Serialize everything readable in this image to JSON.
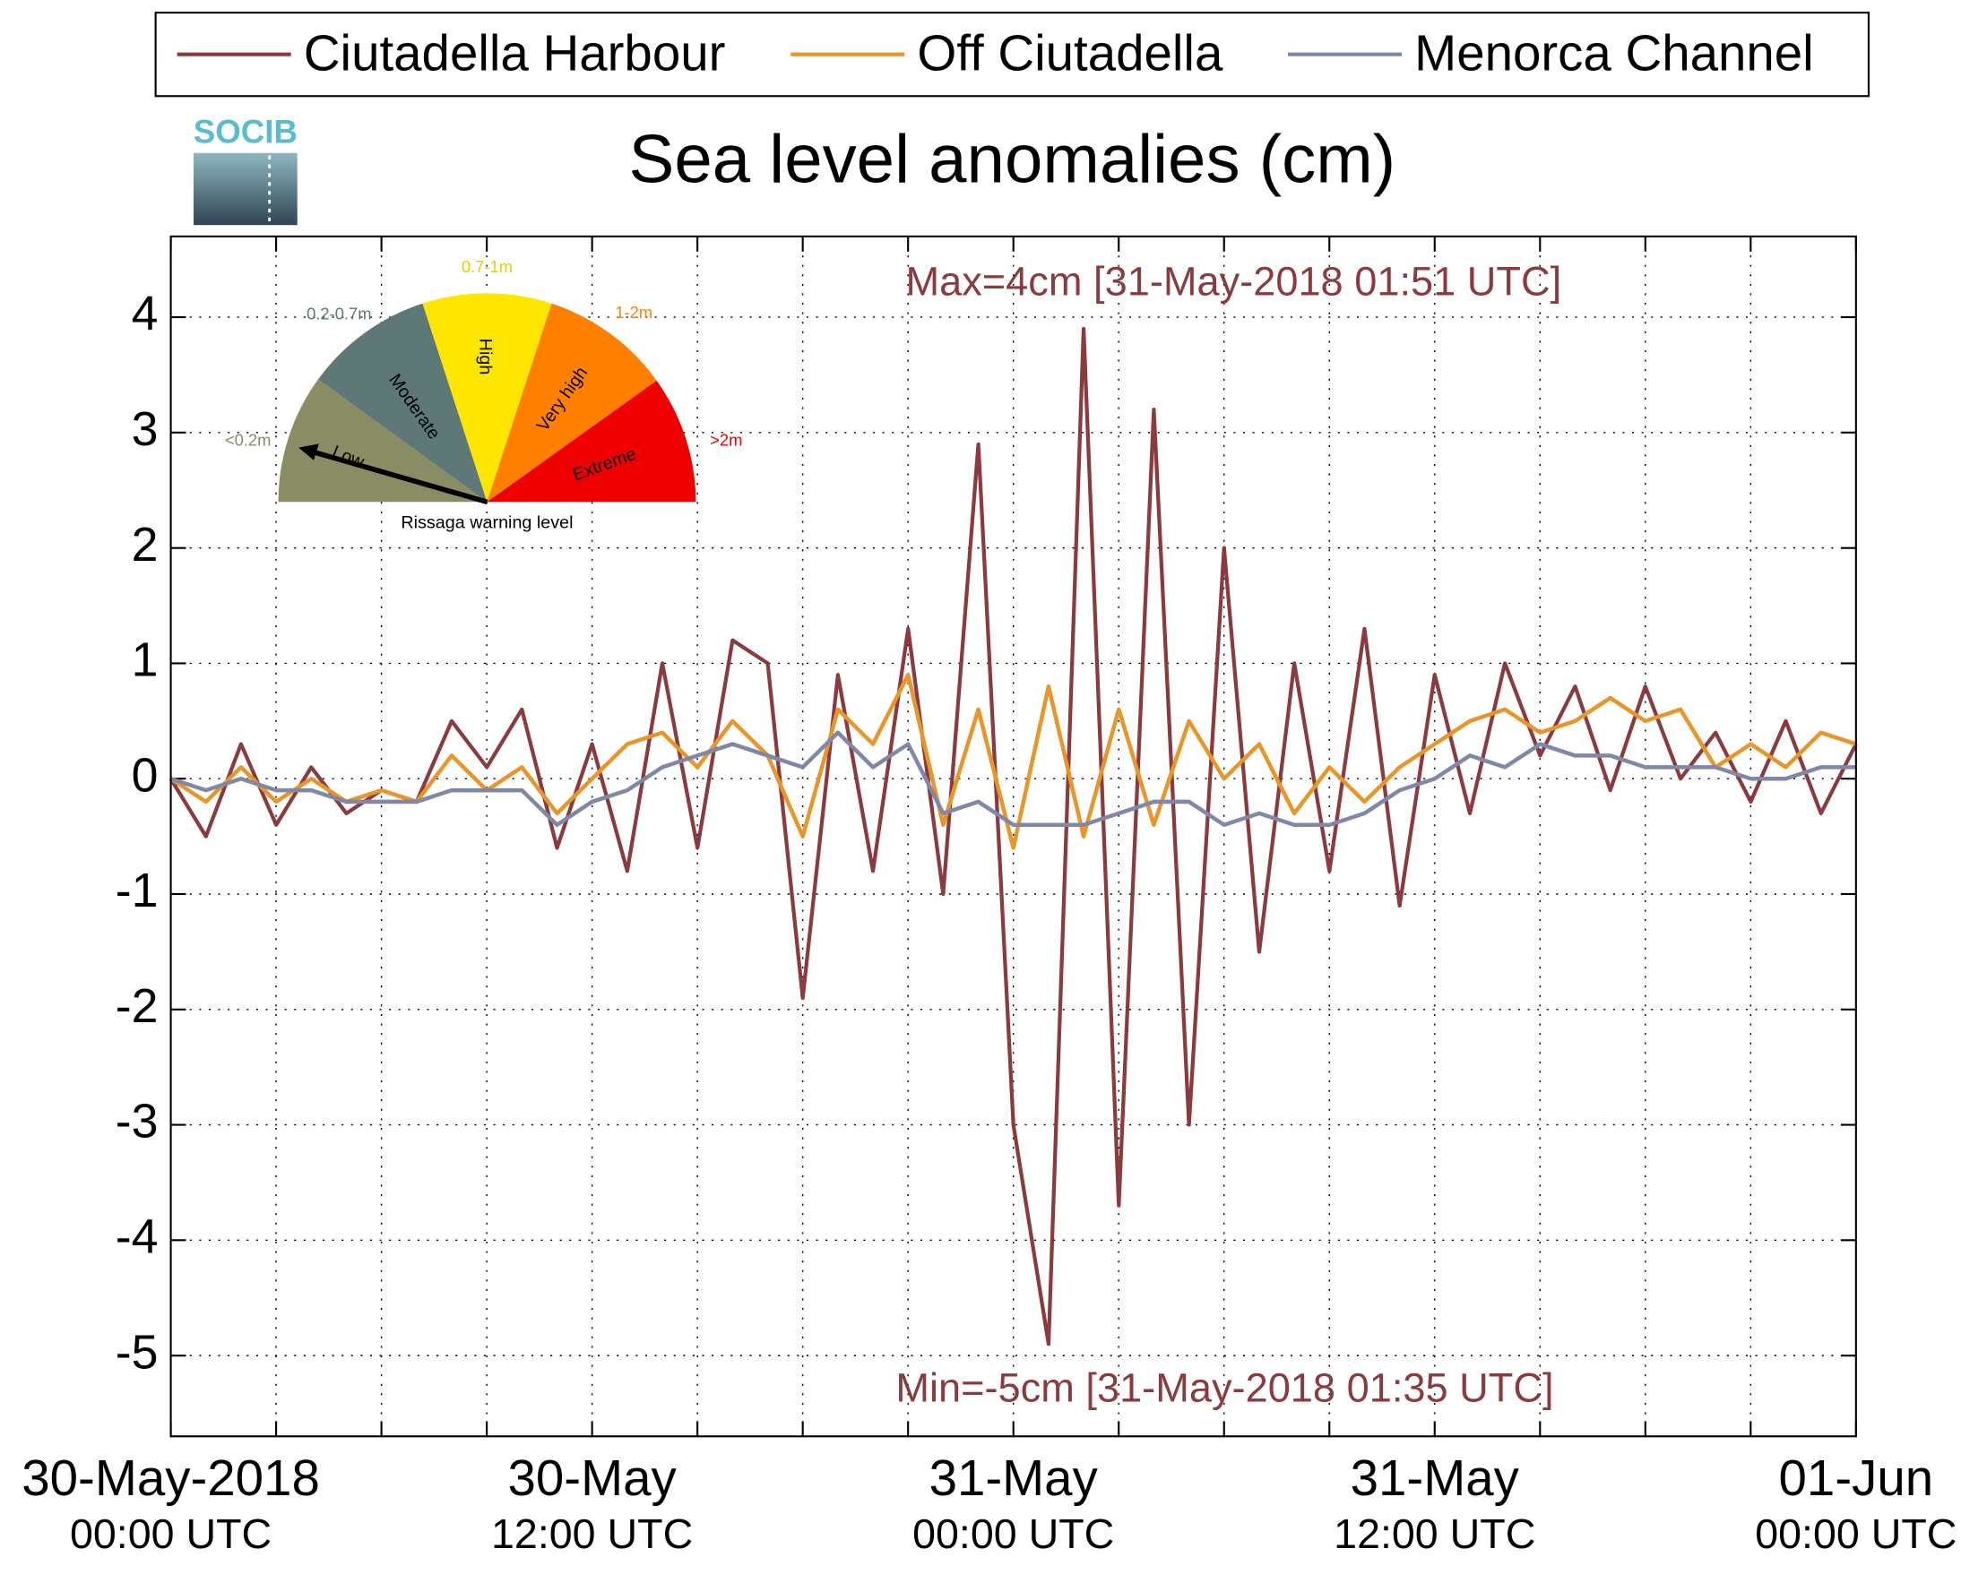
{
  "chart_data": {
    "type": "line",
    "title": "Sea level anomalies (cm)",
    "annotations": [
      "Max=4cm [31-May-2018 01:51 UTC]",
      "Min=-5cm [31-May-2018 01:35 UTC]"
    ],
    "x": [
      0,
      1,
      2,
      3,
      4,
      5,
      6,
      7,
      8,
      9,
      10,
      11,
      12,
      13,
      14,
      15,
      16,
      17,
      18,
      19,
      20,
      21,
      22,
      23,
      24,
      25,
      26,
      27,
      28,
      29,
      30,
      31,
      32,
      33,
      34,
      35,
      36,
      37,
      38,
      39,
      40,
      41,
      42,
      43,
      44,
      45,
      46,
      47,
      48
    ],
    "series": [
      {
        "name": "Ciutadella Harbour",
        "color": "#8b3a3e",
        "values": [
          0,
          -0.5,
          0.3,
          -0.4,
          0.1,
          -0.3,
          -0.1,
          -0.2,
          0.5,
          0.1,
          0.6,
          -0.6,
          0.3,
          -0.8,
          1.0,
          -0.6,
          1.2,
          1.0,
          -1.9,
          0.9,
          -0.8,
          1.3,
          -1.0,
          2.9,
          -3.0,
          -4.9,
          3.9,
          -3.7,
          3.2,
          -3.0,
          2.0,
          -1.5,
          1.0,
          -0.8,
          1.3,
          -1.1,
          0.9,
          -0.3,
          1.0,
          0.2,
          0.8,
          -0.1,
          0.8,
          0,
          0.4,
          -0.2,
          0.5,
          -0.3,
          0.3
        ]
      },
      {
        "name": "Off Ciutadella",
        "color": "#e8962a",
        "values": [
          0,
          -0.2,
          0.1,
          -0.2,
          0,
          -0.2,
          -0.1,
          -0.2,
          0.2,
          -0.1,
          0.1,
          -0.3,
          0,
          0.3,
          0.4,
          0.1,
          0.5,
          0.2,
          -0.5,
          0.6,
          0.3,
          0.9,
          -0.4,
          0.6,
          -0.6,
          0.8,
          -0.5,
          0.6,
          -0.4,
          0.5,
          0,
          0.3,
          -0.3,
          0.1,
          -0.2,
          0.1,
          0.3,
          0.5,
          0.6,
          0.4,
          0.5,
          0.7,
          0.5,
          0.6,
          0.1,
          0.3,
          0.1,
          0.4,
          0.3
        ]
      },
      {
        "name": "Menorca Channel",
        "color": "#7f88a8",
        "values": [
          0,
          -0.1,
          0,
          -0.1,
          -0.1,
          -0.2,
          -0.2,
          -0.2,
          -0.1,
          -0.1,
          -0.1,
          -0.4,
          -0.2,
          -0.1,
          0.1,
          0.2,
          0.3,
          0.2,
          0.1,
          0.4,
          0.1,
          0.3,
          -0.3,
          -0.2,
          -0.4,
          -0.4,
          -0.4,
          -0.3,
          -0.2,
          -0.2,
          -0.4,
          -0.3,
          -0.4,
          -0.4,
          -0.3,
          -0.1,
          0,
          0.2,
          0.1,
          0.3,
          0.2,
          0.2,
          0.1,
          0.1,
          0.1,
          0,
          0,
          0.1,
          0.1
        ]
      }
    ],
    "xlim": [
      0,
      48
    ],
    "xticks": [
      {
        "value": 0,
        "label": "30-May-2018\n00:00 UTC"
      },
      {
        "value": 12,
        "label": "30-May\n12:00 UTC"
      },
      {
        "value": 24,
        "label": "31-May\n00:00 UTC"
      },
      {
        "value": 36,
        "label": "31-May\n12:00 UTC"
      },
      {
        "value": 48,
        "label": "01-Jun\n00:00 UTC"
      }
    ],
    "xminorticks": [
      3,
      6,
      9,
      15,
      18,
      21,
      27,
      30,
      33,
      39,
      42,
      45
    ],
    "ylim": [
      -5.7,
      4.7
    ],
    "yticks": [
      -5,
      -4,
      -3,
      -2,
      -1,
      0,
      1,
      2,
      3,
      4
    ],
    "grid": true,
    "legend": "top"
  },
  "logo": "SOCIB",
  "inset": {
    "range_labels": [
      "<0.2m",
      "0.2-0.7m",
      "0.7-1m",
      "1-2m",
      ">2m"
    ],
    "levels": [
      "Low",
      "Moderate",
      "High",
      "Very high",
      "Extreme"
    ],
    "caption": "Rissaga warning level"
  }
}
